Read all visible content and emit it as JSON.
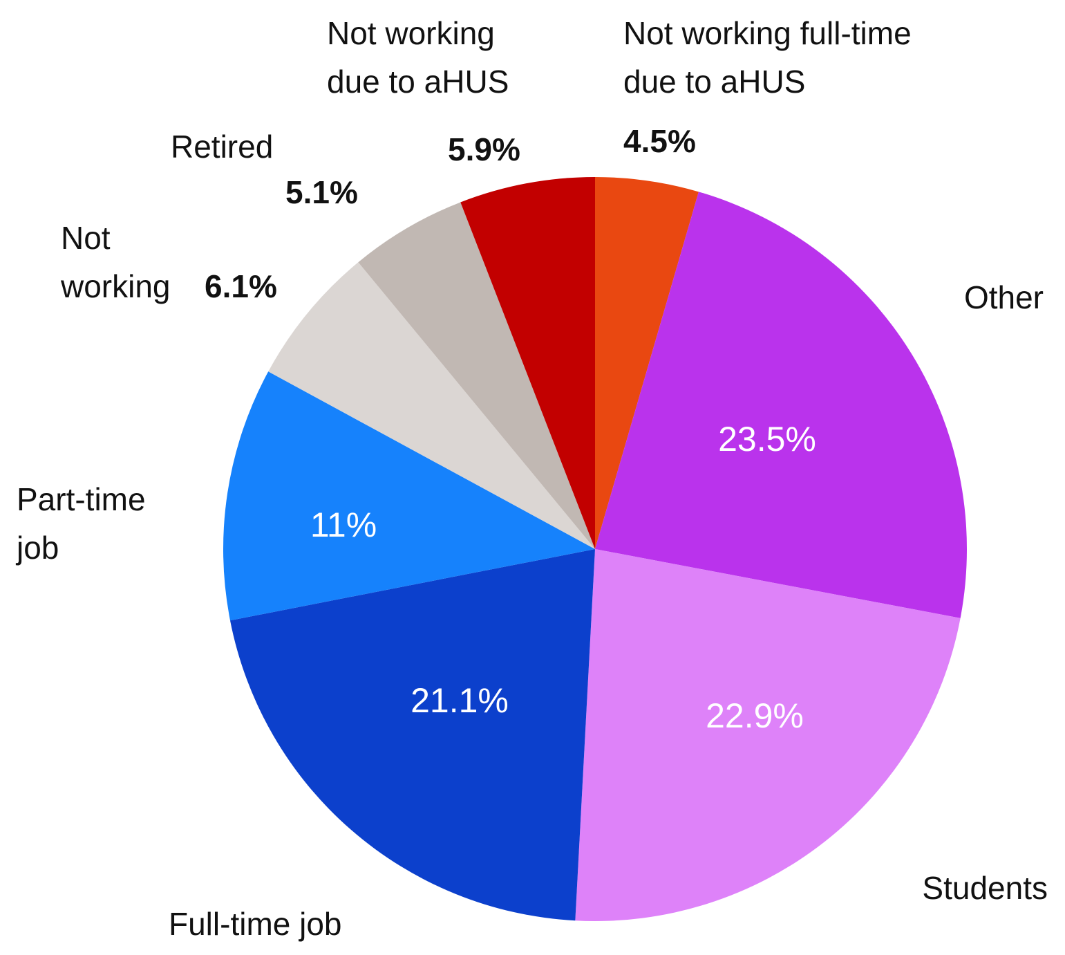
{
  "chart_data": {
    "type": "pie",
    "title": "",
    "start": "12 o'clock",
    "direction": "clockwise",
    "slices": [
      {
        "label_lines": [
          "Not working full-time",
          "due to aHUS"
        ],
        "value": 4.5,
        "value_label": "4.5%",
        "color": "#E94811",
        "label_inside": false
      },
      {
        "label_lines": [
          "Other"
        ],
        "value": 23.5,
        "value_label": "23.5%",
        "color": "#BA33EC",
        "label_inside": true
      },
      {
        "label_lines": [
          "Students"
        ],
        "value": 22.9,
        "value_label": "22.9%",
        "color": "#DE82F9",
        "label_inside": true
      },
      {
        "label_lines": [
          "Full-time job"
        ],
        "value": 21.1,
        "value_label": "21.1%",
        "color": "#0C40CC",
        "label_inside": true
      },
      {
        "label_lines": [
          "Part-time",
          "job"
        ],
        "value": 11,
        "value_label": "11%",
        "color": "#1682FC",
        "label_inside": true
      },
      {
        "label_lines": [
          "Not",
          "working"
        ],
        "value": 6.1,
        "value_label": "6.1%",
        "color": "#DBD6D3",
        "label_inside": false
      },
      {
        "label_lines": [
          "Retired"
        ],
        "value": 5.1,
        "value_label": "5.1%",
        "color": "#C1B8B3",
        "label_inside": false
      },
      {
        "label_lines": [
          "Not working",
          "due to aHUS"
        ],
        "value": 5.9,
        "value_label": "5.9%",
        "color": "#C20000",
        "label_inside": false
      }
    ]
  }
}
